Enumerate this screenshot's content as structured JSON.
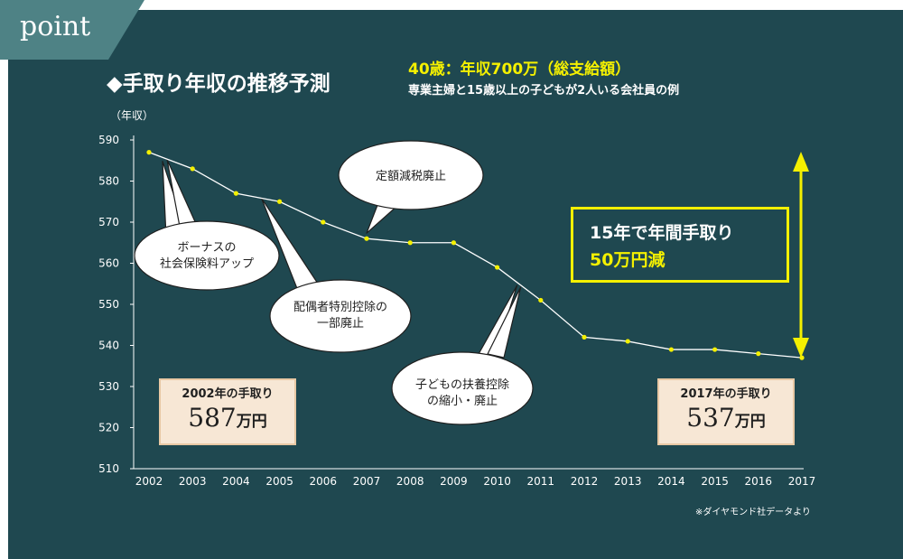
{
  "badge": "point",
  "title": "◆手取り年収の推移予測",
  "subtitle_line1": "40歳：年収700万（総支給額）",
  "subtitle_line2": "専業主婦と15歳以上の子どもが2人いる会社員の例",
  "source": "※ダイヤモンド社データより",
  "callouts": {
    "bonus": [
      "ボーナスの",
      "社会保険料アップ"
    ],
    "spouse": [
      "配偶者特別控除の",
      "一部廃止"
    ],
    "fixed_tax": [
      "定額減税廃止"
    ],
    "dependent": [
      "子どもの扶養控除",
      "の縮小・廃止"
    ]
  },
  "box_2002": {
    "label": "2002年の手取り",
    "value": "587",
    "unit": "万円"
  },
  "box_2017": {
    "label": "2017年の手取り",
    "value": "537",
    "unit": "万円"
  },
  "highlight": {
    "line1": "15年で年間手取り",
    "line2": "50万円減"
  },
  "colors": {
    "background": "#1f4850",
    "tab": "#4e8285",
    "accent": "#f4f000",
    "box_fill": "#f7e7d5"
  },
  "chart_data": {
    "type": "line",
    "ylabel": "（年収）",
    "ylim": [
      510,
      590
    ],
    "yticks": [
      510,
      520,
      530,
      540,
      550,
      560,
      570,
      580,
      590
    ],
    "categories": [
      "2002",
      "2003",
      "2004",
      "2005",
      "2006",
      "2007",
      "2008",
      "2009",
      "2010",
      "2011",
      "2012",
      "2013",
      "2014",
      "2015",
      "2016",
      "2017"
    ],
    "series": [
      {
        "values": [
          587,
          583,
          577,
          575,
          570,
          566,
          565,
          565,
          559,
          551,
          542,
          541,
          539,
          539,
          538,
          537
        ]
      }
    ]
  }
}
